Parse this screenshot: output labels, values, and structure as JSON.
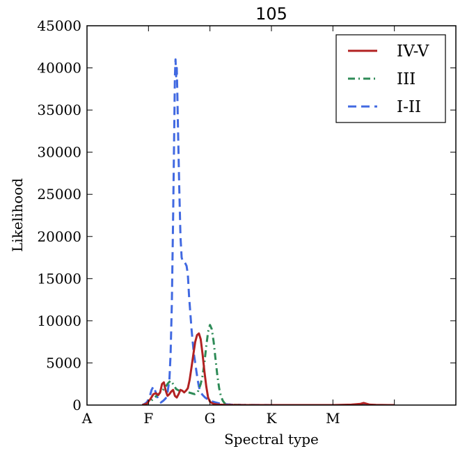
{
  "chart_data": {
    "type": "line",
    "title": "105",
    "xlabel": "Spectral type",
    "ylabel": "Likelihood",
    "xlim": [
      0,
      6
    ],
    "ylim": [
      0,
      45000
    ],
    "xticks": [
      {
        "value": 0,
        "label": "A"
      },
      {
        "value": 1,
        "label": "F"
      },
      {
        "value": 2,
        "label": "G"
      },
      {
        "value": 3,
        "label": "K"
      },
      {
        "value": 4,
        "label": "M"
      },
      {
        "value": 5,
        "label": ""
      }
    ],
    "yticks": [
      0,
      5000,
      10000,
      15000,
      20000,
      25000,
      30000,
      35000,
      40000,
      45000
    ],
    "ytick_labels": [
      "0",
      "5000",
      "10000",
      "15000",
      "20000",
      "25000",
      "30000",
      "35000",
      "40000",
      "45000"
    ],
    "grid": false,
    "legend_position": "top-right",
    "series": [
      {
        "name": "IV-V",
        "color": "#b22222",
        "style": "solid",
        "x": [
          0.9,
          0.97,
          1.03,
          1.08,
          1.12,
          1.16,
          1.19,
          1.22,
          1.25,
          1.28,
          1.31,
          1.34,
          1.37,
          1.4,
          1.43,
          1.46,
          1.49,
          1.52,
          1.55,
          1.58,
          1.61,
          1.64,
          1.67,
          1.7,
          1.73,
          1.76,
          1.79,
          1.82,
          1.85,
          1.88,
          1.91,
          1.94,
          1.97,
          2.0,
          2.03,
          2.06,
          2.1,
          2.15,
          2.25,
          2.4,
          2.6,
          3.0,
          3.5,
          4.0,
          4.3,
          4.45,
          4.5,
          4.55,
          4.6,
          4.7,
          4.9,
          5.0
        ],
        "y": [
          0,
          150,
          700,
          1300,
          1400,
          1200,
          1500,
          2500,
          2700,
          1700,
          1100,
          1300,
          1600,
          1800,
          1100,
          900,
          1300,
          1800,
          1700,
          1500,
          1700,
          2000,
          3000,
          4500,
          6000,
          7500,
          8300,
          8500,
          7800,
          6000,
          4000,
          2200,
          900,
          400,
          250,
          150,
          100,
          50,
          20,
          10,
          0,
          0,
          0,
          0,
          50,
          150,
          250,
          150,
          50,
          20,
          0,
          0
        ]
      },
      {
        "name": "III",
        "color": "#2e8b57",
        "style": "dashdot",
        "x": [
          0.9,
          0.97,
          1.03,
          1.1,
          1.18,
          1.25,
          1.32,
          1.36,
          1.4,
          1.45,
          1.5,
          1.55,
          1.6,
          1.65,
          1.7,
          1.75,
          1.8,
          1.85,
          1.88,
          1.91,
          1.94,
          1.97,
          2.0,
          2.03,
          2.06,
          2.09,
          2.12,
          2.15,
          2.18,
          2.21,
          2.24,
          2.28,
          2.35,
          2.5,
          3.0,
          4.0,
          4.5,
          5.0
        ],
        "y": [
          0,
          150,
          400,
          900,
          1400,
          1900,
          2600,
          2900,
          2500,
          1900,
          1700,
          1600,
          1500,
          1500,
          1400,
          1300,
          1500,
          2500,
          3500,
          5000,
          7000,
          8700,
          9500,
          9000,
          7500,
          5500,
          3500,
          2000,
          1000,
          500,
          200,
          80,
          30,
          10,
          0,
          0,
          0,
          0
        ]
      },
      {
        "name": "I-II",
        "color": "#4169e1",
        "style": "dashed",
        "x": [
          0.9,
          0.95,
          0.98,
          1.02,
          1.05,
          1.08,
          1.12,
          1.16,
          1.2,
          1.24,
          1.28,
          1.31,
          1.34,
          1.36,
          1.38,
          1.4,
          1.42,
          1.43,
          1.44,
          1.45,
          1.46,
          1.47,
          1.48,
          1.5,
          1.52,
          1.54,
          1.56,
          1.58,
          1.6,
          1.62,
          1.64,
          1.66,
          1.68,
          1.7,
          1.72,
          1.74,
          1.76,
          1.78,
          1.8,
          1.82,
          1.84,
          1.86,
          1.88,
          1.92,
          1.96,
          2.0,
          2.05,
          2.1,
          2.15,
          2.2,
          2.25,
          2.35,
          2.5,
          2.8,
          3.2,
          4.0,
          5.0
        ],
        "y": [
          0,
          200,
          400,
          1000,
          1800,
          2200,
          1500,
          600,
          300,
          500,
          800,
          1500,
          3000,
          6000,
          12000,
          22000,
          33000,
          39000,
          41000,
          39000,
          40000,
          37000,
          33000,
          26000,
          20000,
          17500,
          17000,
          17000,
          16800,
          16500,
          15500,
          13000,
          11000,
          9000,
          7500,
          6000,
          5000,
          4000,
          3000,
          2200,
          1700,
          1400,
          1200,
          900,
          700,
          500,
          400,
          300,
          200,
          150,
          100,
          50,
          20,
          10,
          0,
          0,
          0
        ]
      }
    ]
  }
}
